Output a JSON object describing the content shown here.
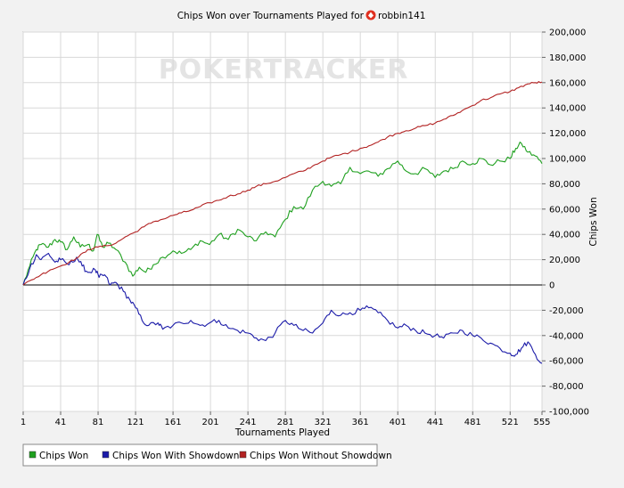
{
  "chart_data": {
    "type": "line",
    "title": "Chips Won over Tournaments Played for",
    "player": "robbin141",
    "xlabel": "Tournaments Played",
    "ylabel": "Chips Won",
    "xlim": [
      1,
      555
    ],
    "ylim": [
      -100000,
      200000
    ],
    "x_ticks": [
      "1",
      "41",
      "81",
      "121",
      "161",
      "201",
      "241",
      "281",
      "321",
      "361",
      "401",
      "441",
      "481",
      "521",
      "555"
    ],
    "y_ticks": [
      "-100,000",
      "-80,000",
      "-60,000",
      "-40,000",
      "-20,000",
      "0",
      "20,000",
      "40,000",
      "60,000",
      "80,000",
      "100,000",
      "120,000",
      "140,000",
      "160,000",
      "180,000",
      "200,000"
    ],
    "grid": true,
    "legend_position": "bottom-left",
    "watermark": "POKERTRACKER",
    "series": [
      {
        "name": "Chips Won",
        "color": "#1fa01f",
        "x": [
          1,
          8,
          15,
          20,
          28,
          35,
          41,
          48,
          55,
          62,
          70,
          76,
          80,
          86,
          92,
          100,
          110,
          118,
          125,
          132,
          140,
          150,
          161,
          170,
          180,
          190,
          200,
          210,
          220,
          230,
          241,
          250,
          260,
          270,
          281,
          290,
          300,
          310,
          321,
          330,
          340,
          350,
          361,
          370,
          380,
          390,
          401,
          410,
          420,
          430,
          441,
          450,
          460,
          470,
          481,
          490,
          500,
          510,
          521,
          527,
          533,
          540,
          548,
          555
        ],
        "y": [
          0,
          15000,
          28000,
          32000,
          30000,
          36000,
          34000,
          28000,
          38000,
          30000,
          32000,
          27000,
          40000,
          30000,
          33000,
          28000,
          18000,
          7000,
          14000,
          10000,
          16000,
          22000,
          27000,
          25000,
          28000,
          35000,
          32000,
          40000,
          36000,
          44000,
          38000,
          35000,
          42000,
          38000,
          52000,
          62000,
          60000,
          75000,
          82000,
          78000,
          80000,
          93000,
          88000,
          90000,
          86000,
          92000,
          98000,
          90000,
          88000,
          92000,
          85000,
          90000,
          92000,
          98000,
          96000,
          100000,
          95000,
          98000,
          100000,
          108000,
          112000,
          105000,
          102000,
          96000
        ]
      },
      {
        "name": "Chips Won With Showdown",
        "color": "#1a1aa8",
        "x": [
          1,
          8,
          15,
          20,
          28,
          35,
          41,
          50,
          58,
          64,
          70,
          78,
          82,
          88,
          94,
          100,
          108,
          115,
          121,
          128,
          135,
          145,
          150,
          161,
          170,
          180,
          190,
          200,
          210,
          220,
          230,
          241,
          250,
          260,
          270,
          281,
          290,
          300,
          310,
          321,
          330,
          340,
          350,
          361,
          370,
          380,
          390,
          401,
          410,
          420,
          430,
          441,
          450,
          460,
          470,
          481,
          490,
          500,
          510,
          521,
          527,
          533,
          540,
          548,
          555
        ],
        "y": [
          0,
          13000,
          24000,
          20000,
          25000,
          18000,
          20000,
          16000,
          22000,
          15000,
          10000,
          12000,
          6000,
          8000,
          0,
          2000,
          -5000,
          -12000,
          -18000,
          -28000,
          -32000,
          -30000,
          -35000,
          -32000,
          -30000,
          -28000,
          -32000,
          -30000,
          -28000,
          -34000,
          -36000,
          -38000,
          -42000,
          -44000,
          -38000,
          -28000,
          -32000,
          -36000,
          -38000,
          -30000,
          -20000,
          -24000,
          -22000,
          -20000,
          -18000,
          -22000,
          -28000,
          -34000,
          -32000,
          -36000,
          -38000,
          -40000,
          -42000,
          -38000,
          -36000,
          -40000,
          -42000,
          -46000,
          -50000,
          -54000,
          -55000,
          -50000,
          -45000,
          -55000,
          -62000
        ]
      },
      {
        "name": "Chips Won Without Showdown",
        "color": "#b22222",
        "x": [
          1,
          10,
          20,
          30,
          41,
          50,
          60,
          70,
          81,
          90,
          100,
          110,
          121,
          130,
          140,
          150,
          161,
          170,
          180,
          190,
          200,
          210,
          220,
          230,
          241,
          250,
          260,
          270,
          281,
          290,
          300,
          310,
          321,
          330,
          340,
          350,
          361,
          370,
          380,
          390,
          401,
          410,
          420,
          430,
          441,
          450,
          460,
          470,
          481,
          490,
          500,
          510,
          521,
          530,
          540,
          548,
          555
        ],
        "y": [
          0,
          4000,
          8000,
          12000,
          15000,
          18000,
          22000,
          28000,
          30000,
          31000,
          33000,
          38000,
          42000,
          46000,
          50000,
          52000,
          55000,
          57000,
          59000,
          62000,
          65000,
          67000,
          70000,
          72000,
          75000,
          78000,
          80000,
          82000,
          85000,
          88000,
          90000,
          94000,
          98000,
          101000,
          103000,
          105000,
          108000,
          110000,
          113000,
          117000,
          120000,
          122000,
          124000,
          126000,
          128000,
          131000,
          134000,
          138000,
          142000,
          146000,
          148000,
          151000,
          153000,
          156000,
          159000,
          160000,
          160500
        ]
      }
    ]
  }
}
